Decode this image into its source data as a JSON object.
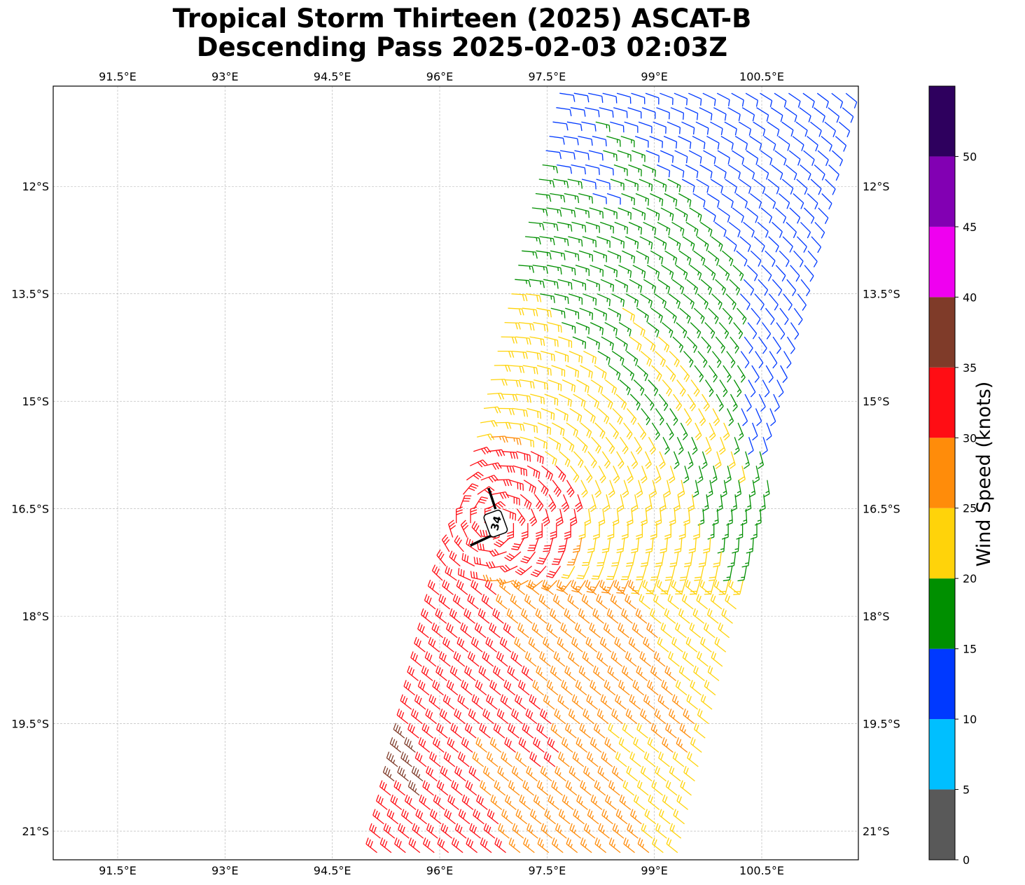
{
  "title": {
    "line1": "Tropical Storm Thirteen (2025) ASCAT-B",
    "line2": "Descending Pass 2025-02-03 02:03Z"
  },
  "map": {
    "lon_range": [
      90.6,
      101.85
    ],
    "lat_range": [
      -10.6,
      -21.4
    ],
    "lon_ticks": [
      "91.5°E",
      "93°E",
      "94.5°E",
      "96°E",
      "97.5°E",
      "99°E",
      "100.5°E"
    ],
    "lon_tick_values": [
      91.5,
      93,
      94.5,
      96,
      97.5,
      99,
      100.5
    ],
    "lat_ticks": [
      "12°S",
      "13.5°S",
      "15°S",
      "16.5°S",
      "18°S",
      "19.5°S",
      "21°S"
    ],
    "lat_tick_values": [
      -12,
      -13.5,
      -15,
      -16.5,
      -18,
      -19.5,
      -21
    ],
    "gridlines": true,
    "storm_center": {
      "lon": 96.8,
      "lat": -16.7,
      "intensity_label": "34"
    }
  },
  "colorbar": {
    "title": "Wind Speed (knots)",
    "tick_labels": [
      "0",
      "5",
      "10",
      "15",
      "20",
      "25",
      "30",
      "35",
      "40",
      "45",
      "50"
    ],
    "bins": [
      {
        "from": 0,
        "to": 5,
        "color": "#595959"
      },
      {
        "from": 5,
        "to": 10,
        "color": "#00bfff"
      },
      {
        "from": 10,
        "to": 15,
        "color": "#0039ff"
      },
      {
        "from": 15,
        "to": 20,
        "color": "#008f00"
      },
      {
        "from": 20,
        "to": 25,
        "color": "#ffd30a"
      },
      {
        "from": 25,
        "to": 30,
        "color": "#ff8c0a"
      },
      {
        "from": 30,
        "to": 35,
        "color": "#ff0d14"
      },
      {
        "from": 35,
        "to": 40,
        "color": "#7f3b29"
      },
      {
        "from": 40,
        "to": 45,
        "color": "#ef00f0"
      },
      {
        "from": 45,
        "to": 50,
        "color": "#8200b3"
      },
      {
        "from": 50,
        "to": 55,
        "color": "#2e005e"
      }
    ]
  }
}
